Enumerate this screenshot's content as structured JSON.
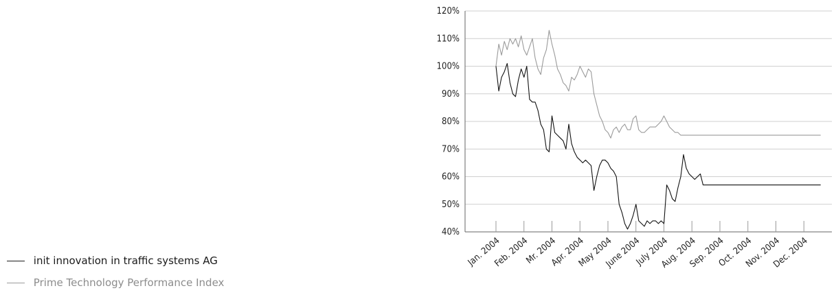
{
  "chart_data": {
    "type": "line",
    "title": "",
    "xlabel": "",
    "ylabel": "",
    "ylim": [
      40,
      120
    ],
    "yticks": [
      "40%",
      "50%",
      "60%",
      "70%",
      "80%",
      "90%",
      "100%",
      "110%",
      "120%"
    ],
    "categories": [
      "Jan. 2004",
      "Feb. 2004",
      "Mr. 2004",
      "Apr. 2004",
      "May 2004",
      "June 2004",
      "July 2004",
      "Aug. 2004",
      "Sep. 2004",
      "Oct. 2004",
      "Nov. 2004",
      "Dec. 2004"
    ],
    "grid": true,
    "legend_position": "bottom-left",
    "series": [
      {
        "name": "init innovation in traffic systems AG",
        "color": "#111111",
        "x": [
          0,
          0.1,
          0.2,
          0.3,
          0.4,
          0.5,
          0.6,
          0.7,
          0.8,
          0.9,
          1.0,
          1.1,
          1.2,
          1.3,
          1.4,
          1.5,
          1.6,
          1.7,
          1.8,
          1.9,
          2.0,
          2.1,
          2.2,
          2.3,
          2.4,
          2.5,
          2.6,
          2.7,
          2.8,
          2.9,
          3.0,
          3.1,
          3.2,
          3.3,
          3.4,
          3.5,
          3.6,
          3.7,
          3.8,
          3.9,
          4.0,
          4.1,
          4.2,
          4.3,
          4.4,
          4.5,
          4.6,
          4.7,
          4.8,
          4.9,
          5.0,
          5.1,
          5.2,
          5.3,
          5.4,
          5.5,
          5.6,
          5.7,
          5.8,
          5.9,
          6.0,
          6.1,
          6.2,
          6.3,
          6.4,
          6.5,
          6.6,
          6.7,
          6.8,
          6.9,
          7.0,
          7.1,
          7.2,
          7.3,
          7.4,
          7.5,
          7.6,
          7.7,
          7.8,
          7.9,
          8.0,
          8.1,
          8.2,
          8.3,
          8.4,
          8.5,
          8.6,
          8.7,
          8.8,
          8.9,
          9.0,
          9.1,
          9.2,
          9.3,
          9.4,
          9.5,
          9.6,
          9.7,
          9.8,
          9.9,
          10.0,
          10.1,
          10.2,
          10.3,
          10.4,
          10.5,
          10.6,
          10.7,
          10.8,
          10.9,
          11.0,
          11.1,
          11.2,
          11.3,
          11.4,
          11.5,
          11.6
        ],
        "values": [
          100,
          91,
          96,
          98,
          101,
          94,
          90,
          89,
          95,
          99,
          96,
          100,
          88,
          87,
          87,
          84,
          79,
          77,
          70,
          69,
          82,
          76,
          75,
          74,
          73,
          70,
          79,
          72,
          69,
          67,
          66,
          65,
          66,
          65,
          64,
          55,
          60,
          64,
          66,
          66,
          65,
          63,
          62,
          60,
          50,
          47,
          43,
          41,
          43,
          46,
          50,
          44,
          43,
          42,
          44,
          43,
          44,
          44,
          43,
          44,
          43,
          57,
          55,
          52,
          51,
          56,
          60,
          68,
          63,
          61,
          60,
          59,
          60,
          61,
          57,
          57,
          57,
          57,
          57,
          57,
          57,
          57,
          57,
          57,
          57,
          57,
          57,
          57,
          57,
          57,
          57,
          57,
          57,
          57,
          57,
          57,
          57,
          57,
          57,
          57,
          57,
          57,
          57,
          57,
          57,
          57,
          57,
          57,
          57,
          57,
          57,
          57,
          57,
          57,
          57,
          57,
          57
        ]
      },
      {
        "name": "Prime Technology Performance Index",
        "color": "#9a9a9a",
        "x": [
          0,
          0.1,
          0.2,
          0.3,
          0.4,
          0.5,
          0.6,
          0.7,
          0.8,
          0.9,
          1.0,
          1.1,
          1.2,
          1.3,
          1.4,
          1.5,
          1.6,
          1.7,
          1.8,
          1.9,
          2.0,
          2.1,
          2.2,
          2.3,
          2.4,
          2.5,
          2.6,
          2.7,
          2.8,
          2.9,
          3.0,
          3.1,
          3.2,
          3.3,
          3.4,
          3.5,
          3.6,
          3.7,
          3.8,
          3.9,
          4.0,
          4.1,
          4.2,
          4.3,
          4.4,
          4.5,
          4.6,
          4.7,
          4.8,
          4.9,
          5.0,
          5.1,
          5.2,
          5.3,
          5.4,
          5.5,
          5.6,
          5.7,
          5.8,
          5.9,
          6.0,
          6.1,
          6.2,
          6.3,
          6.4,
          6.5,
          6.6,
          6.7,
          6.8,
          6.9,
          7.0,
          7.1,
          7.2,
          7.3,
          7.4,
          7.5,
          7.6,
          7.7,
          7.8,
          7.9,
          8.0,
          8.1,
          8.2,
          8.3,
          8.4,
          8.5,
          8.6,
          8.7,
          8.8,
          8.9,
          9.0,
          9.1,
          9.2,
          9.3,
          9.4,
          9.5,
          9.6,
          9.7,
          9.8,
          9.9,
          10.0,
          10.1,
          10.2,
          10.3,
          10.4,
          10.5,
          10.6,
          10.7,
          10.8,
          10.9,
          11.0,
          11.1,
          11.2,
          11.3,
          11.4,
          11.5,
          11.6
        ],
        "values": [
          100,
          108,
          104,
          109,
          106,
          110,
          108,
          110,
          107,
          111,
          106,
          104,
          107,
          110,
          103,
          99,
          97,
          103,
          106,
          113,
          108,
          104,
          99,
          97,
          94,
          93,
          91,
          96,
          95,
          97,
          100,
          98,
          96,
          99,
          98,
          90,
          86,
          82,
          80,
          77,
          76,
          74,
          77,
          78,
          76,
          78,
          79,
          77,
          77,
          81,
          82,
          77,
          76,
          76,
          77,
          78,
          78,
          78,
          79,
          80,
          82,
          80,
          78,
          77,
          76,
          76,
          75,
          75,
          75,
          75,
          75,
          75,
          75,
          75,
          75,
          75,
          75,
          75,
          75,
          75,
          75,
          75,
          75,
          75,
          75,
          75,
          75,
          75,
          75,
          75,
          75,
          75,
          75,
          75,
          75,
          75,
          75,
          75,
          75,
          75,
          75,
          75,
          75,
          75,
          75,
          75,
          75,
          75,
          75,
          75,
          75,
          75,
          75,
          75,
          75,
          75,
          75
        ]
      }
    ]
  },
  "legend": {
    "items": [
      {
        "label": "init innovation in traffic systems AG"
      },
      {
        "label": "Prime Technology Performance Index"
      }
    ]
  }
}
